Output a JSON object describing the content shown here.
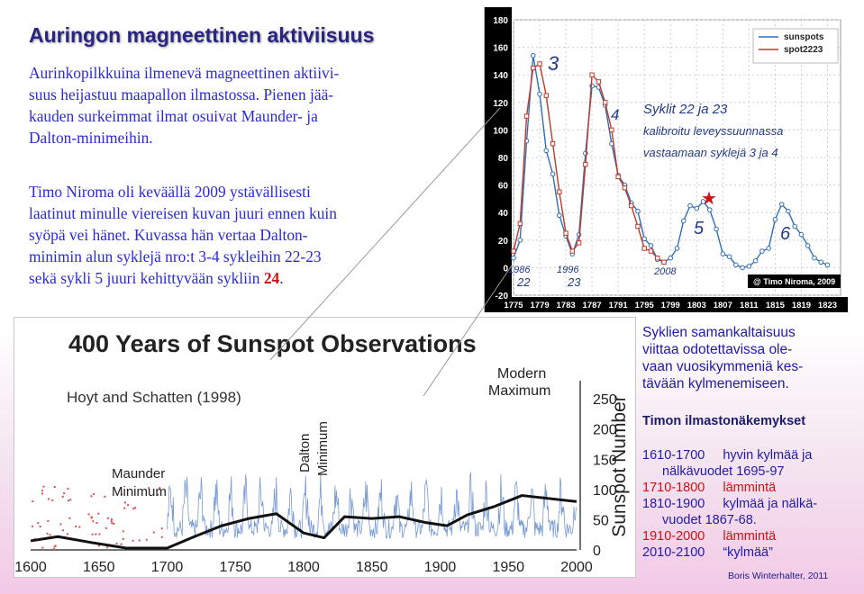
{
  "slide": {
    "title": "Auringon magneettinen aktiviisuus",
    "para1": "Aurinkopilkkuina ilmenevä magneettinen aktiivisuus heijastuu maapallon ilmastossa. Pienen jääkauden surkeimmat ilmat osuivat Maunder- ja Dalton-minimeihin.",
    "para1_lines": [
      "Aurinkopilkkuina ilmenevä magneettinen aktiivi-",
      "suus heijastuu maapallon ilmastossa. Pienen jää-",
      "kauden surkeimmat ilmat osuivat Maunder- ja",
      "Dalton-minimeihin."
    ],
    "para2_lines": [
      "Timo Niroma oli keväällä 2009 ystävällisesti",
      "laatinut minulle viereisen kuvan juuri ennen kuin",
      "syöpä vei hänet. Kuvassa hän vertaa Dalton-",
      "minimin alun syklejä nro:t 3-4 sykleihin 22-23",
      "sekä sykli 5 juuri kehittyvään sykliin "
    ],
    "para2_highlight": "24",
    "para2_end": ".",
    "author": "Boris Winterhalter, 2011"
  },
  "right_notes": {
    "similarity_lines": [
      "Syklien samankaltaisuus",
      "viittaa odotettavissa ole-",
      "vaan vuosikymmeniä kes-",
      "tävään kylmenemiseen."
    ],
    "view_title": "Timon ilmastonäkemykset",
    "periods": [
      {
        "years": "1610-1700",
        "text": "hyvin kylmää ja",
        "indent": false,
        "warm": false
      },
      {
        "years": "",
        "text": "nälkävuodet 1695-97",
        "indent": true,
        "warm": false
      },
      {
        "years": "1710-1800",
        "text": "lämmintä",
        "indent": false,
        "warm": true
      },
      {
        "years": "1810-1900",
        "text": "kylmää ja nälkä-",
        "indent": false,
        "warm": false
      },
      {
        "years": "",
        "text": "vuodet 1867-68.",
        "indent": true,
        "warm": false
      },
      {
        "years": "1910-2000",
        "text": "lämmintä",
        "indent": false,
        "warm": true
      },
      {
        "years": "2010-2100",
        "text": "“kylmää”",
        "indent": false,
        "warm": false
      }
    ]
  },
  "chart_data": [
    {
      "type": "line",
      "title": "",
      "legend": [
        "sunspots",
        "spot2223"
      ],
      "legend_position": "top-right",
      "xlabel": "",
      "ylabel": "",
      "xlim": [
        1775,
        1825
      ],
      "ylim": [
        -20,
        180
      ],
      "x_ticks": [
        1775,
        1779,
        1783,
        1787,
        1791,
        1795,
        1799,
        1803,
        1807,
        1811,
        1815,
        1819,
        1823
      ],
      "y_ticks": [
        -20,
        0,
        20,
        40,
        60,
        80,
        100,
        120,
        140,
        160,
        180
      ],
      "grid": true,
      "copyright": "@ Timo Niroma, 2009",
      "series": [
        {
          "name": "sunspots",
          "color": "#2f6fb6",
          "x": [
            1775,
            1776,
            1777,
            1778,
            1779,
            1780,
            1781,
            1782,
            1783,
            1784,
            1785,
            1786,
            1787,
            1788,
            1789,
            1790,
            1791,
            1792,
            1793,
            1794,
            1795,
            1796,
            1797,
            1798,
            1799,
            1800,
            1801,
            1802,
            1803,
            1804,
            1805,
            1806,
            1807,
            1808,
            1809,
            1810,
            1811,
            1812,
            1813,
            1814,
            1815,
            1816,
            1817,
            1818,
            1819,
            1820,
            1821,
            1822,
            1823
          ],
          "y": [
            7,
            20,
            92,
            154,
            126,
            85,
            68,
            38,
            23,
            10,
            24,
            83,
            132,
            131,
            118,
            90,
            67,
            60,
            47,
            41,
            21,
            16,
            6,
            4,
            7,
            14,
            34,
            45,
            43,
            48,
            42,
            28,
            10,
            8,
            2,
            0,
            1,
            5,
            12,
            14,
            35,
            46,
            41,
            30,
            24,
            16,
            7,
            4,
            2
          ]
        },
        {
          "name": "spot2223",
          "color": "#c0392b",
          "x": [
            1775,
            1776,
            1777,
            1778,
            1779,
            1780,
            1781,
            1782,
            1783,
            1784,
            1785,
            1786,
            1787,
            1788,
            1789,
            1790,
            1791,
            1792,
            1793,
            1794,
            1795,
            1796,
            1797,
            1798
          ],
          "y": [
            12,
            32,
            110,
            145,
            148,
            125,
            90,
            55,
            25,
            12,
            18,
            75,
            140,
            135,
            120,
            100,
            66,
            58,
            45,
            30,
            14,
            12,
            7,
            4
          ]
        }
      ],
      "annotations": [
        "3",
        "4",
        "5",
        "6",
        "1986",
        "1996",
        "2008",
        "22",
        "23",
        "Syklit 22 ja 23",
        "kalibroitu leveyssuunnassa",
        "vastaamaan syklejä 3 ja 4"
      ]
    },
    {
      "type": "line",
      "title": "400 Years of Sunspot Observations",
      "xlabel": "",
      "ylabel": "Sunspot Number",
      "xlim": [
        1600,
        2000
      ],
      "ylim": [
        0,
        280
      ],
      "x_ticks": [
        1600,
        1650,
        1700,
        1750,
        1800,
        1850,
        1900,
        1950,
        2000
      ],
      "y_ticks": [
        0,
        50,
        100,
        150,
        200,
        250
      ],
      "source": "Hoyt and Schatten (1998)",
      "labels": [
        "Maunder Minimum",
        "Dalton Minimum",
        "Modern Maximum"
      ],
      "smooth": {
        "x": [
          1600,
          1620,
          1645,
          1670,
          1700,
          1720,
          1740,
          1760,
          1780,
          1800,
          1815,
          1830,
          1850,
          1870,
          1890,
          1905,
          1920,
          1940,
          1960,
          1980,
          2000
        ],
        "y": [
          15,
          22,
          12,
          3,
          3,
          22,
          40,
          52,
          60,
          28,
          20,
          55,
          52,
          55,
          45,
          40,
          58,
          72,
          90,
          85,
          80
        ]
      }
    }
  ]
}
